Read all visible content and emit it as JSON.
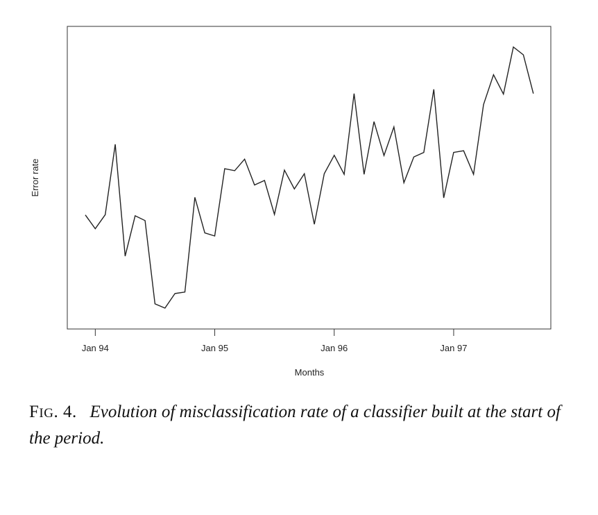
{
  "chart_data": {
    "type": "line",
    "title": "",
    "xlabel": "Months",
    "ylabel": "Error rate",
    "x_ticks": [
      "Jan 94",
      "Jan 95",
      "Jan 96",
      "Jan 97"
    ],
    "y_ticks_shown": false,
    "grid": false,
    "x_start": "Dec 93",
    "x_step": "1 month",
    "series": [
      {
        "values": [
          0.367,
          0.318,
          0.368,
          0.619,
          0.22,
          0.364,
          0.347,
          0.05,
          0.035,
          0.087,
          0.092,
          0.43,
          0.303,
          0.292,
          0.532,
          0.525,
          0.566,
          0.474,
          0.49,
          0.369,
          0.527,
          0.46,
          0.514,
          0.334,
          0.514,
          0.58,
          0.512,
          0.8,
          0.512,
          0.7,
          0.579,
          0.681,
          0.482,
          0.574,
          0.59,
          0.815,
          0.428,
          0.59,
          0.596,
          0.512,
          0.761,
          0.867,
          0.798,
          0.966,
          0.938,
          0.8
        ]
      }
    ]
  },
  "caption": {
    "label_big": "F",
    "label_small": "IG",
    "label_num": ". 4.",
    "text": "Evolution of misclassification rate of a classifier built at the start of the period."
  }
}
